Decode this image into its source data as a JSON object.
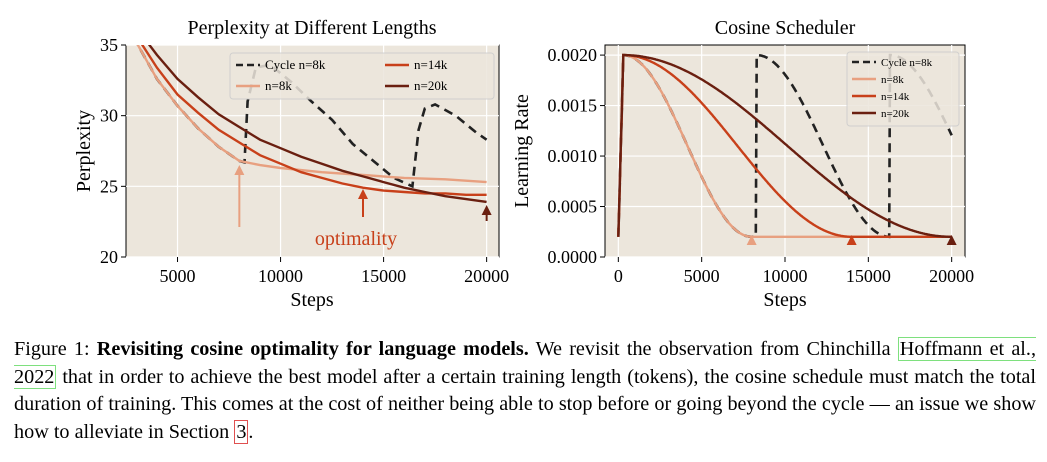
{
  "chart_data": [
    {
      "type": "line",
      "title": "Perplexity at Different Lengths",
      "xlabel": "Steps",
      "ylabel": "Perplexity",
      "xlim": [
        2500,
        20600
      ],
      "ylim": [
        20,
        35
      ],
      "xticks": [
        5000,
        10000,
        15000,
        20000
      ],
      "xtick_labels": [
        "5000",
        "10000",
        "15000",
        "20000"
      ],
      "yticks": [
        20,
        25,
        30,
        35
      ],
      "ytick_labels": [
        "20",
        "25",
        "30",
        "35"
      ],
      "grid": true,
      "legend_position": "top-right",
      "series": [
        {
          "name": "Cycle n=8k",
          "color": "#222222",
          "dash": true,
          "x": [
            2500,
            4000,
            5000,
            6000,
            7000,
            8000,
            8250,
            8400,
            8800,
            9500,
            10500,
            11500,
            12500,
            13500,
            14500,
            15500,
            16400,
            16700,
            17000,
            17500,
            18500,
            19500,
            20000
          ],
          "y": [
            36.5,
            32.6,
            30.7,
            29.1,
            27.8,
            26.8,
            26.7,
            31.0,
            33.4,
            33.6,
            32.4,
            31.0,
            29.7,
            28.0,
            26.8,
            25.6,
            25.0,
            29.0,
            30.5,
            30.8,
            30.0,
            28.8,
            28.3
          ]
        },
        {
          "name": "n=8k",
          "color": "#e8a080",
          "dash": false,
          "x": [
            2500,
            4000,
            5000,
            6000,
            7000,
            8000,
            9000,
            10000,
            12000,
            14000,
            16000,
            18000,
            20000
          ],
          "y": [
            36.5,
            32.6,
            30.7,
            29.1,
            27.8,
            26.8,
            26.5,
            26.3,
            26.0,
            25.8,
            25.6,
            25.5,
            25.3
          ]
        },
        {
          "name": "n=14k",
          "color": "#c8401a",
          "dash": false,
          "x": [
            2500,
            4000,
            5000,
            6000,
            7000,
            8000,
            9000,
            10000,
            11000,
            12000,
            13000,
            14000,
            15000,
            16000,
            17000,
            18000,
            19000,
            20000
          ],
          "y": [
            36.8,
            33.4,
            31.5,
            30.2,
            29.0,
            28.1,
            27.2,
            26.6,
            26.0,
            25.6,
            25.2,
            24.9,
            24.7,
            24.6,
            24.5,
            24.5,
            24.4,
            24.4
          ]
        },
        {
          "name": "n=20k",
          "color": "#6a1f10",
          "dash": false,
          "x": [
            2500,
            4000,
            5000,
            6000,
            7000,
            8000,
            9000,
            10000,
            11000,
            12000,
            13000,
            14000,
            15000,
            16000,
            17000,
            18000,
            19000,
            20000
          ],
          "y": [
            37.2,
            34.3,
            32.6,
            31.3,
            30.1,
            29.2,
            28.3,
            27.7,
            27.1,
            26.6,
            26.1,
            25.7,
            25.3,
            24.9,
            24.6,
            24.3,
            24.1,
            23.9
          ]
        }
      ],
      "annotations": [
        {
          "text": "optimality",
          "color": "#c8401a"
        },
        {
          "arrow_x": 8000,
          "color": "#e8a080"
        },
        {
          "arrow_x": 14000,
          "color": "#c8401a"
        },
        {
          "arrow_x": 20000,
          "color": "#6a1f10"
        }
      ]
    },
    {
      "type": "line",
      "title": "Cosine Scheduler",
      "xlabel": "Steps",
      "ylabel": "Learning Rate",
      "xlim": [
        -800,
        20800
      ],
      "ylim": [
        0,
        0.0021
      ],
      "xticks": [
        0,
        5000,
        10000,
        15000,
        20000
      ],
      "xtick_labels": [
        "0",
        "5000",
        "10000",
        "15000",
        "20000"
      ],
      "yticks": [
        0,
        0.0005,
        0.001,
        0.0015,
        0.002
      ],
      "ytick_labels": [
        "0.0000",
        "0.0005",
        "0.0010",
        "0.0015",
        "0.0020"
      ],
      "grid": true,
      "legend_position": "top-right",
      "series": [
        {
          "name": "Cycle n=8k",
          "color": "#222222",
          "dash": true,
          "schedule": {
            "warmup": 300,
            "peak": 0.002,
            "min": 0.0002,
            "cycle": 8000
          }
        },
        {
          "name": "n=8k",
          "color": "#e8a080",
          "dash": false,
          "schedule": {
            "warmup": 300,
            "peak": 0.002,
            "min": 0.0002,
            "length": 8000
          }
        },
        {
          "name": "n=14k",
          "color": "#c8401a",
          "dash": false,
          "schedule": {
            "warmup": 300,
            "peak": 0.002,
            "min": 0.0002,
            "length": 14000
          }
        },
        {
          "name": "n=20k",
          "color": "#6a1f10",
          "dash": false,
          "schedule": {
            "warmup": 300,
            "peak": 0.002,
            "min": 0.0002,
            "length": 20000
          }
        }
      ],
      "annotations": [
        {
          "arrow_x": 8000,
          "color": "#e8a080"
        },
        {
          "arrow_x": 14000,
          "color": "#c8401a"
        },
        {
          "arrow_x": 20000,
          "color": "#6a1f10"
        }
      ]
    }
  ],
  "caption": {
    "label": "Figure 1:",
    "bold_title": "Revisiting cosine optimality for language models.",
    "text_before_cite": "We revisit the observation from Chinchilla",
    "cite_text": "Hoffmann et al., 2022",
    "text_after_cite": "that in order to achieve the best model after a certain training length (tokens), the cosine schedule must match the total duration of training. This comes at the cost of neither being able to stop before or going beyond the cycle — an issue we show how to alleviate in Section",
    "section_ref": "3",
    "end": "."
  }
}
